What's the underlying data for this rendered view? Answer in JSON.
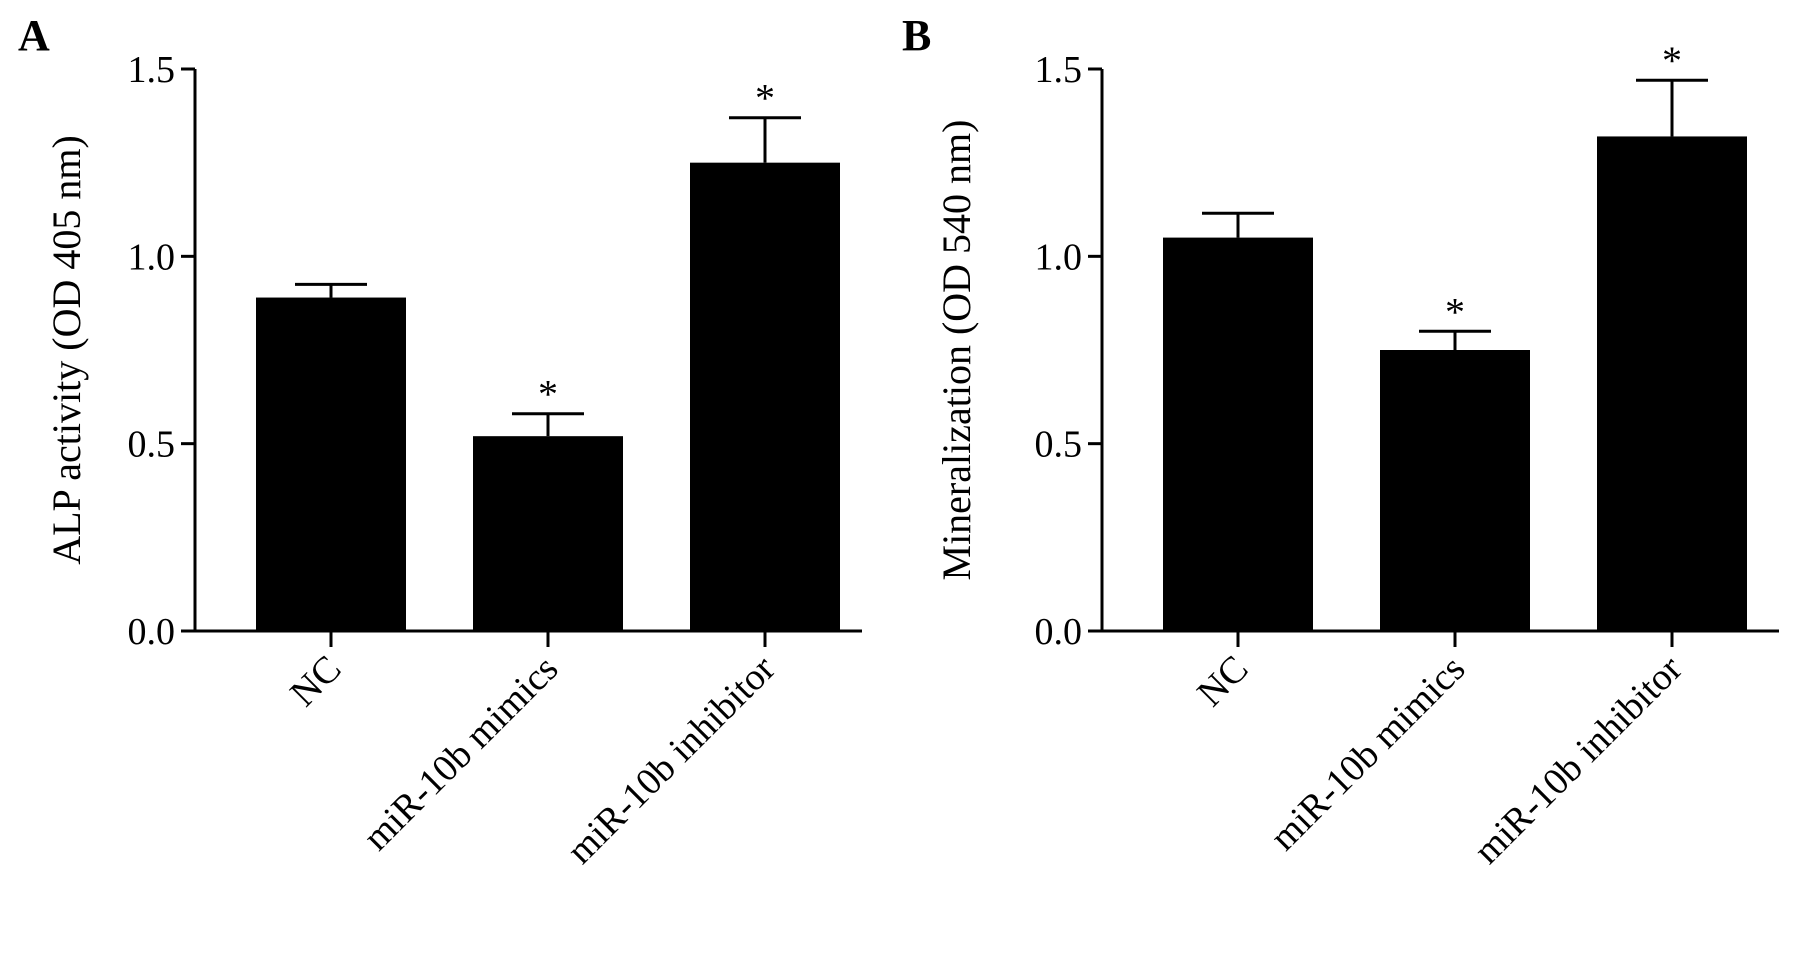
{
  "chart_data": [
    {
      "type": "bar",
      "panel": "A",
      "ylabel": "ALP activity (OD 405 nm)",
      "categories": [
        "NC",
        "miR-10b mimics",
        "miR-10b inhibitor"
      ],
      "values": [
        0.89,
        0.52,
        1.25
      ],
      "errors": [
        0.035,
        0.06,
        0.12
      ],
      "significance": [
        "",
        "*",
        "*"
      ],
      "ylim": [
        0,
        1.5
      ],
      "yticks": [
        "0.0",
        "0.5",
        "1.0",
        "1.5"
      ],
      "bar_color": "#000000",
      "grid": false
    },
    {
      "type": "bar",
      "panel": "B",
      "ylabel": "Mineralization  (OD 540 nm)",
      "categories": [
        "NC",
        "miR-10b mimics",
        "miR-10b inhibitor"
      ],
      "values": [
        1.05,
        0.75,
        1.32
      ],
      "errors": [
        0.065,
        0.05,
        0.15
      ],
      "significance": [
        "",
        "*",
        "*"
      ],
      "ylim": [
        0,
        1.5
      ],
      "yticks": [
        "0.0",
        "0.5",
        "1.0",
        "1.5"
      ],
      "bar_color": "#000000",
      "grid": false
    }
  ]
}
